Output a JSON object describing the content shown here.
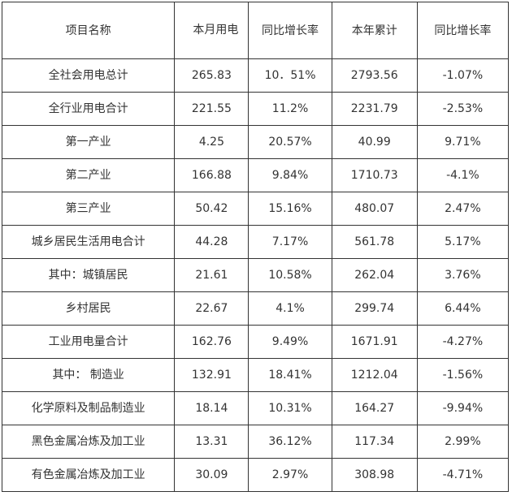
{
  "table": {
    "headers": [
      "项目名称",
      "本月用电",
      "同比增长率",
      "本年累计",
      "同比增长率"
    ],
    "rows": [
      [
        "全社会用电总计",
        "265.83",
        "10．51%",
        "2793.56",
        "-1.07%"
      ],
      [
        "全行业用电合计",
        "221.55",
        "11.2%",
        "2231.79",
        "-2.53%"
      ],
      [
        "第一产业",
        "4.25",
        "20.57%",
        "40.99",
        "9.71%"
      ],
      [
        "第二产业",
        "166.88",
        "9.84%",
        "1710.73",
        "-4.1%"
      ],
      [
        "第三产业",
        "50.42",
        "15.16%",
        "480.07",
        "2.47%"
      ],
      [
        "城乡居民生活用电合计",
        "44.28",
        "7.17%",
        "561.78",
        "5.17%"
      ],
      [
        "其中：城镇居民",
        "21.61",
        "10.58%",
        "262.04",
        "3.76%"
      ],
      [
        "乡村居民",
        "22.67",
        "4.1%",
        "299.74",
        "6.44%"
      ],
      [
        "工业用电量合计",
        "162.76",
        "9.49%",
        "1671.91",
        "-4.27%"
      ],
      [
        "其中： 制造业",
        "132.91",
        "18.41%",
        "1212.04",
        "-1.56%"
      ],
      [
        "化学原料及制品制造业",
        "18.14",
        "10.31%",
        "164.27",
        "-9.94%"
      ],
      [
        "黑色金属冶炼及加工业",
        "13.31",
        "36.12%",
        "117.34",
        "2.99%"
      ],
      [
        "有色金属冶炼及加工业",
        "30.09",
        "2.97%",
        "308.98",
        "-4.71%"
      ]
    ]
  }
}
